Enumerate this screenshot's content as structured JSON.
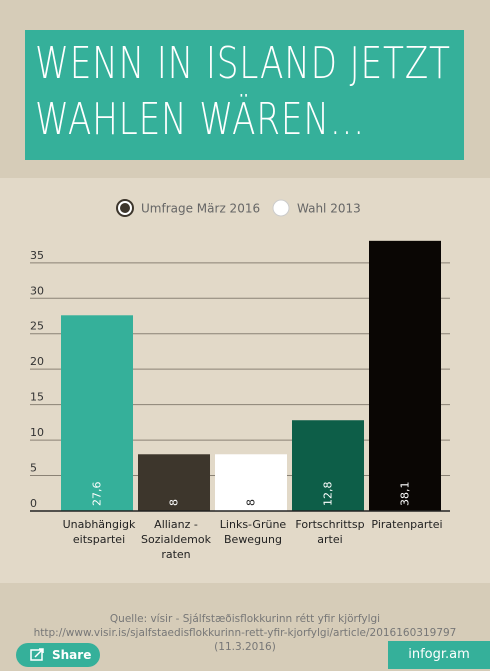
{
  "chart_data": {
    "type": "bar",
    "title": [
      "WENN IN ISLAND JETZT",
      "WAHLEN WÄREN..."
    ],
    "legend": [
      "Umfrage März 2016",
      "Wahl 2013"
    ],
    "categories": [
      "Unabhängigkeitspartei",
      "Allianz - Sozialdemokraten",
      "Links-Grüne Bewegung",
      "Fortschrittspartei",
      "Piratenpartei"
    ],
    "values": [
      27.6,
      8,
      8,
      12.8,
      38.1
    ],
    "value_labels": [
      "27,6",
      "8",
      "8",
      "12,8",
      "38,1"
    ],
    "colors": [
      "#35b09a",
      "#3d362c",
      "#ffffff",
      "#0d5e48",
      "#0a0604"
    ],
    "ylim": [
      0,
      38.5
    ],
    "yticks": [
      0,
      5,
      10,
      15,
      20,
      25,
      30,
      35
    ],
    "grid": true
  },
  "source": "Quelle: vísir -  Sjálfstæðisflokkurinn rétt yfir kjörfylgi http://www.visir.is/sjalfstaedisflokkurinn-rett-yfir-kjorfylgi/article/2016160319797 (11.3.2016)",
  "share": "Share",
  "brand": "infogr.am"
}
